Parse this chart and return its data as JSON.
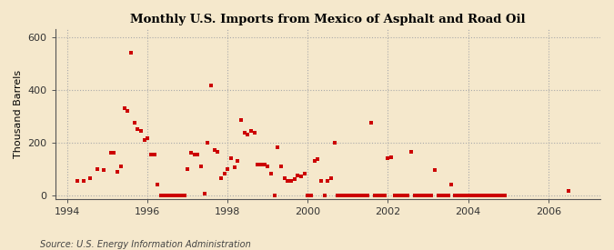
{
  "title": "Monthly U.S. Imports from Mexico of Asphalt and Road Oil",
  "ylabel": "Thousand Barrels",
  "source": "Source: U.S. Energy Information Administration",
  "background_color": "#f5e8cc",
  "plot_background_color": "#f5e8cc",
  "marker_color": "#cc0000",
  "xlim": [
    1993.7,
    2007.3
  ],
  "ylim": [
    -15,
    630
  ],
  "yticks": [
    0,
    200,
    400,
    600
  ],
  "xticks": [
    1994,
    1996,
    1998,
    2000,
    2002,
    2004,
    2006
  ],
  "data_points": [
    [
      1994.25,
      55
    ],
    [
      1994.42,
      55
    ],
    [
      1994.58,
      65
    ],
    [
      1994.75,
      100
    ],
    [
      1994.92,
      95
    ],
    [
      1995.08,
      160
    ],
    [
      1995.17,
      160
    ],
    [
      1995.25,
      90
    ],
    [
      1995.33,
      110
    ],
    [
      1995.42,
      330
    ],
    [
      1995.5,
      320
    ],
    [
      1995.58,
      540
    ],
    [
      1995.67,
      275
    ],
    [
      1995.75,
      250
    ],
    [
      1995.83,
      245
    ],
    [
      1995.92,
      210
    ],
    [
      1996.0,
      215
    ],
    [
      1996.08,
      155
    ],
    [
      1996.17,
      155
    ],
    [
      1996.25,
      40
    ],
    [
      1996.33,
      0
    ],
    [
      1996.42,
      0
    ],
    [
      1996.5,
      0
    ],
    [
      1996.58,
      0
    ],
    [
      1996.67,
      0
    ],
    [
      1996.75,
      0
    ],
    [
      1996.83,
      0
    ],
    [
      1996.92,
      0
    ],
    [
      1997.0,
      100
    ],
    [
      1997.08,
      160
    ],
    [
      1997.17,
      155
    ],
    [
      1997.25,
      155
    ],
    [
      1997.33,
      110
    ],
    [
      1997.42,
      5
    ],
    [
      1997.5,
      200
    ],
    [
      1997.58,
      415
    ],
    [
      1997.67,
      170
    ],
    [
      1997.75,
      165
    ],
    [
      1997.83,
      65
    ],
    [
      1997.92,
      80
    ],
    [
      1998.0,
      100
    ],
    [
      1998.08,
      140
    ],
    [
      1998.17,
      105
    ],
    [
      1998.25,
      130
    ],
    [
      1998.33,
      285
    ],
    [
      1998.42,
      235
    ],
    [
      1998.5,
      230
    ],
    [
      1998.58,
      245
    ],
    [
      1998.67,
      235
    ],
    [
      1998.75,
      115
    ],
    [
      1998.83,
      115
    ],
    [
      1998.92,
      115
    ],
    [
      1999.0,
      110
    ],
    [
      1999.08,
      80
    ],
    [
      1999.17,
      0
    ],
    [
      1999.25,
      180
    ],
    [
      1999.33,
      110
    ],
    [
      1999.42,
      65
    ],
    [
      1999.5,
      55
    ],
    [
      1999.58,
      55
    ],
    [
      1999.67,
      60
    ],
    [
      1999.75,
      75
    ],
    [
      1999.83,
      70
    ],
    [
      1999.92,
      80
    ],
    [
      2000.0,
      0
    ],
    [
      2000.08,
      0
    ],
    [
      2000.17,
      130
    ],
    [
      2000.25,
      135
    ],
    [
      2000.33,
      55
    ],
    [
      2000.42,
      0
    ],
    [
      2000.5,
      55
    ],
    [
      2000.58,
      65
    ],
    [
      2000.67,
      200
    ],
    [
      2000.75,
      0
    ],
    [
      2000.83,
      0
    ],
    [
      2000.92,
      0
    ],
    [
      2001.0,
      0
    ],
    [
      2001.08,
      0
    ],
    [
      2001.17,
      0
    ],
    [
      2001.25,
      0
    ],
    [
      2001.33,
      0
    ],
    [
      2001.42,
      0
    ],
    [
      2001.5,
      0
    ],
    [
      2001.58,
      275
    ],
    [
      2001.67,
      0
    ],
    [
      2001.75,
      0
    ],
    [
      2001.83,
      0
    ],
    [
      2001.92,
      0
    ],
    [
      2002.0,
      140
    ],
    [
      2002.08,
      145
    ],
    [
      2002.17,
      0
    ],
    [
      2002.25,
      0
    ],
    [
      2002.33,
      0
    ],
    [
      2002.42,
      0
    ],
    [
      2002.5,
      0
    ],
    [
      2002.58,
      165
    ],
    [
      2002.67,
      0
    ],
    [
      2002.75,
      0
    ],
    [
      2002.83,
      0
    ],
    [
      2002.92,
      0
    ],
    [
      2003.0,
      0
    ],
    [
      2003.08,
      0
    ],
    [
      2003.17,
      95
    ],
    [
      2003.25,
      0
    ],
    [
      2003.33,
      0
    ],
    [
      2003.42,
      0
    ],
    [
      2003.5,
      0
    ],
    [
      2003.58,
      40
    ],
    [
      2003.67,
      0
    ],
    [
      2003.75,
      0
    ],
    [
      2003.83,
      0
    ],
    [
      2003.92,
      0
    ],
    [
      2004.0,
      0
    ],
    [
      2004.08,
      0
    ],
    [
      2004.17,
      0
    ],
    [
      2004.25,
      0
    ],
    [
      2004.33,
      0
    ],
    [
      2004.42,
      0
    ],
    [
      2004.5,
      0
    ],
    [
      2004.58,
      0
    ],
    [
      2004.67,
      0
    ],
    [
      2004.75,
      0
    ],
    [
      2004.83,
      0
    ],
    [
      2004.92,
      0
    ],
    [
      2006.5,
      15
    ]
  ]
}
